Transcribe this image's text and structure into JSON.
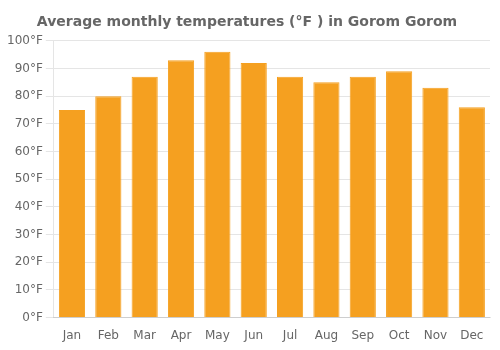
{
  "chart_data": {
    "type": "bar",
    "title": "Average monthly temperatures (°F ) in Gorom Gorom",
    "categories": [
      "Jan",
      "Feb",
      "Mar",
      "Apr",
      "May",
      "Jun",
      "Jul",
      "Aug",
      "Sep",
      "Oct",
      "Nov",
      "Dec"
    ],
    "values": [
      75,
      80,
      87,
      93,
      96,
      92,
      87,
      85,
      87,
      89,
      83,
      76
    ],
    "color": "#F5A020",
    "ylim": [
      0,
      100
    ],
    "yticks": [
      {
        "value": 0,
        "label": "0°F"
      },
      {
        "value": 10,
        "label": "10°F"
      },
      {
        "value": 20,
        "label": "20°F"
      },
      {
        "value": 30,
        "label": "30°F"
      },
      {
        "value": 40,
        "label": "40°F"
      },
      {
        "value": 50,
        "label": "50°F"
      },
      {
        "value": 60,
        "label": "60°F"
      },
      {
        "value": 70,
        "label": "70°F"
      },
      {
        "value": 80,
        "label": "80°F"
      },
      {
        "value": 90,
        "label": "90°F"
      },
      {
        "value": 100,
        "label": "100°F"
      }
    ],
    "grid": true
  }
}
